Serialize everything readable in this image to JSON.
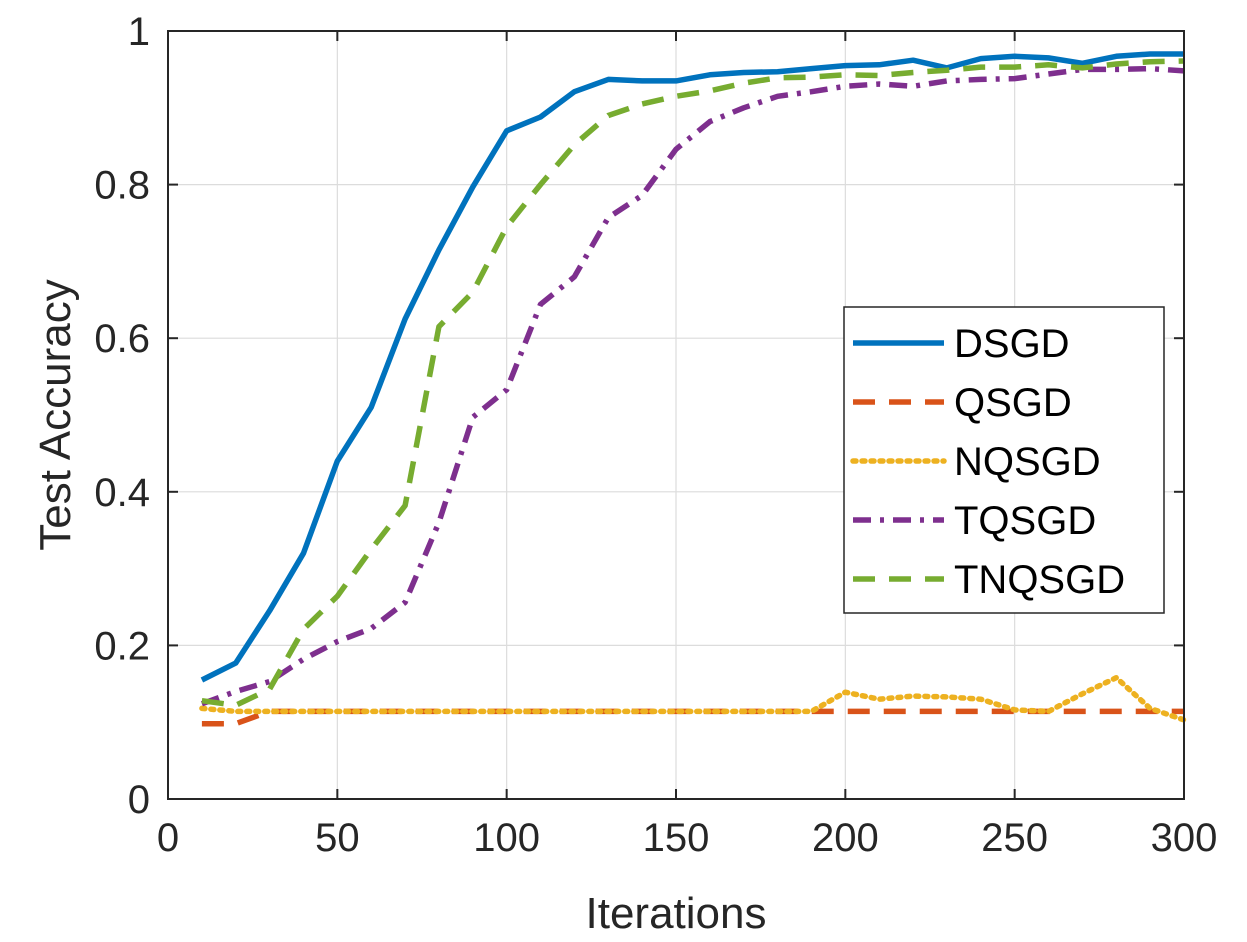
{
  "chart_data": {
    "type": "line",
    "title": "",
    "xlabel": "Iterations",
    "ylabel": "Test Accuracy",
    "xlim": [
      0,
      300
    ],
    "ylim": [
      0,
      1
    ],
    "xticks": [
      0,
      50,
      100,
      150,
      200,
      250,
      300
    ],
    "xtick_labels": [
      "0",
      "50",
      "100",
      "150",
      "200",
      "250",
      "300"
    ],
    "yticks": [
      0,
      0.2,
      0.4,
      0.6,
      0.8,
      1
    ],
    "ytick_labels": [
      "0",
      "0.2",
      "0.4",
      "0.6",
      "0.8",
      "1"
    ],
    "grid": true,
    "legend_position": "center-right",
    "x": [
      10,
      20,
      30,
      40,
      50,
      60,
      70,
      80,
      90,
      100,
      110,
      120,
      130,
      140,
      150,
      160,
      170,
      180,
      190,
      200,
      210,
      220,
      230,
      240,
      250,
      260,
      270,
      280,
      290,
      300
    ],
    "series": [
      {
        "name": "DSGD",
        "color": "#0072BD",
        "dash": "solid",
        "values": [
          0.155,
          0.177,
          0.245,
          0.32,
          0.44,
          0.51,
          0.625,
          0.715,
          0.797,
          0.87,
          0.888,
          0.921,
          0.937,
          0.935,
          0.935,
          0.943,
          0.946,
          0.947,
          0.951,
          0.955,
          0.956,
          0.962,
          0.952,
          0.964,
          0.967,
          0.965,
          0.958,
          0.967,
          0.97,
          0.97
        ]
      },
      {
        "name": "QSGD",
        "color": "#D95319",
        "dash": "dashed",
        "values": [
          0.098,
          0.098,
          0.114,
          0.114,
          0.114,
          0.114,
          0.114,
          0.114,
          0.114,
          0.114,
          0.114,
          0.114,
          0.114,
          0.114,
          0.114,
          0.114,
          0.114,
          0.114,
          0.114,
          0.114,
          0.114,
          0.114,
          0.114,
          0.114,
          0.114,
          0.114,
          0.114,
          0.114,
          0.114,
          0.114
        ]
      },
      {
        "name": "NQSGD",
        "color": "#EDB120",
        "dash": "dotted",
        "values": [
          0.118,
          0.114,
          0.114,
          0.114,
          0.114,
          0.114,
          0.114,
          0.114,
          0.114,
          0.114,
          0.114,
          0.114,
          0.114,
          0.114,
          0.114,
          0.114,
          0.114,
          0.114,
          0.114,
          0.139,
          0.13,
          0.134,
          0.133,
          0.13,
          0.116,
          0.114,
          0.137,
          0.158,
          0.118,
          0.103
        ]
      },
      {
        "name": "TQSGD",
        "color": "#7E2F8E",
        "dash": "dashdot",
        "values": [
          0.124,
          0.14,
          0.153,
          0.182,
          0.205,
          0.222,
          0.256,
          0.36,
          0.497,
          0.533,
          0.644,
          0.68,
          0.757,
          0.786,
          0.846,
          0.882,
          0.9,
          0.915,
          0.921,
          0.928,
          0.931,
          0.928,
          0.935,
          0.937,
          0.938,
          0.944,
          0.95,
          0.95,
          0.951,
          0.948
        ]
      },
      {
        "name": "TNQSGD",
        "color": "#77AC30",
        "dash": "dashed",
        "values": [
          0.128,
          0.122,
          0.143,
          0.221,
          0.264,
          0.325,
          0.382,
          0.615,
          0.66,
          0.745,
          0.8,
          0.852,
          0.89,
          0.905,
          0.915,
          0.922,
          0.932,
          0.939,
          0.94,
          0.943,
          0.942,
          0.946,
          0.949,
          0.953,
          0.953,
          0.956,
          0.952,
          0.957,
          0.96,
          0.961
        ]
      }
    ]
  }
}
